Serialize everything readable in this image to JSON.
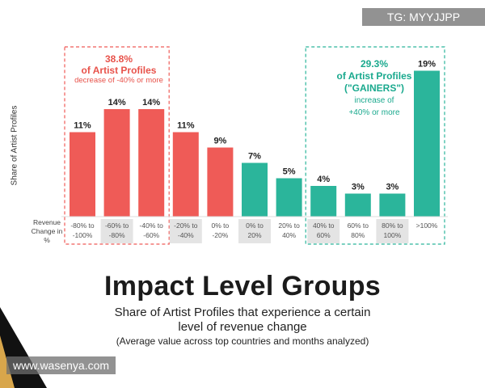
{
  "watermarks": {
    "top_right": "TG: MYYJJPP",
    "bottom_left": "www.wasenya.com"
  },
  "annotations": {
    "losers": {
      "pct": "38.8%",
      "line2": "of Artist Profiles",
      "line3": "decrease of -40% or more"
    },
    "gainers": {
      "pct": "29.3%",
      "line2": "of Artist Profiles",
      "line3": "(\"GAINERS\")",
      "line4": "increase of",
      "line5": "+40% or more"
    }
  },
  "footer": {
    "title": "Impact Level Groups",
    "subtitle_line1": "Share of Artist Profiles that experience a certain",
    "subtitle_line2": "level of revenue change",
    "note": "(Average value across top countries and months analyzed)"
  },
  "chart_data": {
    "type": "bar",
    "title": "Impact Level Groups",
    "ylabel": "Share of Artist Profiles",
    "xlabel": "Revenue Change in %",
    "ylim": [
      0,
      20
    ],
    "categories": [
      "-80% to -100%",
      "-60% to -80%",
      "-40% to -60%",
      "-20% to -40%",
      "0% to -20%",
      "0% to 20%",
      "20% to 40%",
      "40% to 60%",
      "60% to 80%",
      "80% to 100%",
      ">100%"
    ],
    "tick_lines": [
      [
        "-80% to",
        "-100%"
      ],
      [
        "-60% to",
        "-80%"
      ],
      [
        "-40% to",
        "-60%"
      ],
      [
        "-20% to",
        "-40%"
      ],
      [
        "0% to",
        "-20%"
      ],
      [
        "0% to",
        "20%"
      ],
      [
        "20% to",
        "40%"
      ],
      [
        "40% to",
        "60%"
      ],
      [
        "60% to",
        "80%"
      ],
      [
        "80% to",
        "100%"
      ],
      [
        ">100%"
      ]
    ],
    "values": [
      11,
      14,
      14,
      11,
      9,
      7,
      5,
      4,
      3,
      3,
      19
    ],
    "data_labels": [
      "11%",
      "14%",
      "14%",
      "11%",
      "9%",
      "7%",
      "5%",
      "4%",
      "3%",
      "3%",
      "19%"
    ],
    "colors": [
      "#ef5b57",
      "#ef5b57",
      "#ef5b57",
      "#ef5b57",
      "#ef5b57",
      "#2bb59b",
      "#2bb59b",
      "#2bb59b",
      "#2bb59b",
      "#2bb59b",
      "#2bb59b"
    ],
    "highlighted_tick_bg": [
      false,
      true,
      false,
      true,
      false,
      true,
      false,
      true,
      false,
      true,
      false
    ],
    "row_label_lines": [
      "Revenue",
      "Change in",
      "%"
    ]
  }
}
